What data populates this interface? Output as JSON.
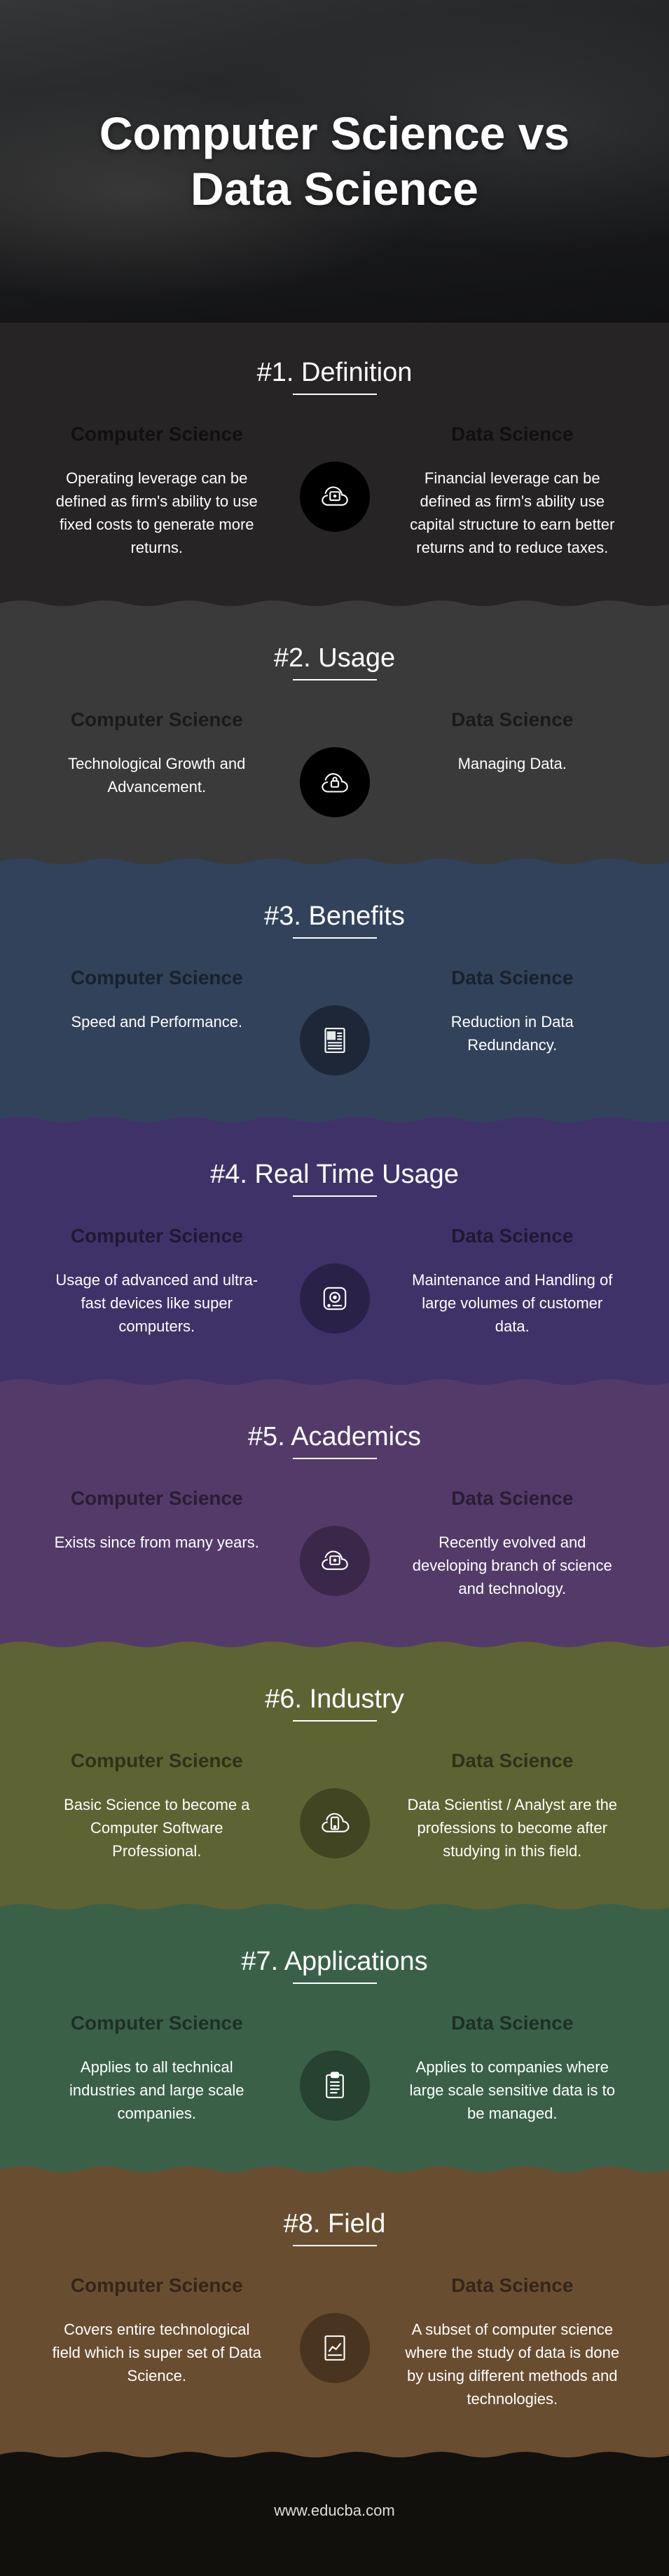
{
  "hero": {
    "title": "Computer Science vs Data Science"
  },
  "labels": {
    "left": "Computer Science",
    "right": "Data Science"
  },
  "footer": {
    "url": "www.educba.com"
  },
  "sections": [
    {
      "title": "#1. Definition",
      "bg": "#262424",
      "head_color": "rgba(0,0,0,0.55)",
      "icon_bg": "#000000",
      "icon_stroke": "#ffffff",
      "icon": "cloud-device",
      "left": "Operating leverage can be defined as firm's ability to use fixed costs to generate more returns.",
      "right": "Financial leverage can be defined as firm's ability use capital structure to earn better returns and to reduce taxes."
    },
    {
      "title": "#2. Usage",
      "bg": "#3a3a3a",
      "head_color": "rgba(0,0,0,0.55)",
      "icon_bg": "#000000",
      "icon_stroke": "#ffffff",
      "icon": "cloud-lock",
      "left": "Technological Growth and Advancement.",
      "right": "Managing Data."
    },
    {
      "title": "#3. Benefits",
      "bg": "#32425b",
      "head_color": "rgba(0,0,0,0.5)",
      "icon_bg": "#1d2738",
      "icon_stroke": "#ffffff",
      "icon": "document",
      "left": "Speed and Performance.",
      "right": "Reduction in Data Redundancy."
    },
    {
      "title": "#4. Real Time Usage",
      "bg": "#3f3268",
      "head_color": "rgba(0,0,0,0.5)",
      "icon_bg": "#2a2148",
      "icon_stroke": "#ffffff",
      "icon": "disk",
      "left": "Usage of advanced and ultra-fast devices like super computers.",
      "right": "Maintenance and Handling of large volumes of customer data."
    },
    {
      "title": "#5. Academics",
      "bg": "#543a69",
      "head_color": "rgba(0,0,0,0.5)",
      "icon_bg": "#3a2749",
      "icon_stroke": "#ffffff",
      "icon": "cloud-device",
      "left": "Exists since from many years.",
      "right": "Recently evolved and developing branch of science and technology."
    },
    {
      "title": "#6. Industry",
      "bg": "#5e6333",
      "head_color": "rgba(0,0,0,0.5)",
      "icon_bg": "#414522",
      "icon_stroke": "#ffffff",
      "icon": "cloud-phone",
      "left": "Basic Science to become a Computer Software Professional.",
      "right": "Data Scientist / Analyst are the professions to become after studying in this field."
    },
    {
      "title": "#7. Applications",
      "bg": "#3a6148",
      "head_color": "rgba(0,0,0,0.5)",
      "icon_bg": "#274231",
      "icon_stroke": "#ffffff",
      "icon": "clipboard",
      "left": "Applies to all technical industries and large scale companies.",
      "right": "Applies to companies where large scale sensitive data is to be managed."
    },
    {
      "title": "#8. Field",
      "bg": "#694d30",
      "head_color": "rgba(0,0,0,0.5)",
      "icon_bg": "#49351f",
      "icon_stroke": "#ffffff",
      "icon": "chart-doc",
      "left": "Covers entire technological field which is super set of Data Science.",
      "right": "A subset of computer science where the study of data is done by using different methods and technologies."
    }
  ]
}
